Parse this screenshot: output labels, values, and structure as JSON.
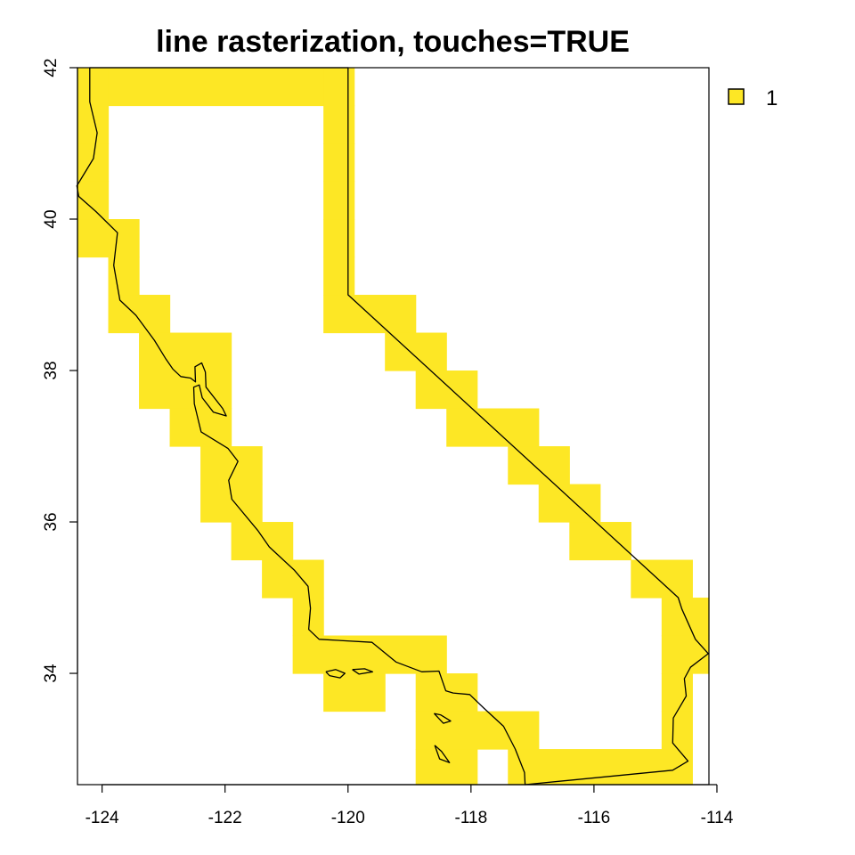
{
  "chart_data": {
    "type": "heatmap",
    "title": "line rasterization, touches=TRUE",
    "xlim": [
      -124.4,
      -114.13
    ],
    "ylim": [
      32.53,
      42.0
    ],
    "x_ticks": [
      -124,
      -122,
      -120,
      -118,
      -116,
      -114
    ],
    "y_ticks": [
      34,
      36,
      38,
      40,
      42
    ],
    "grid": false,
    "legend": {
      "placement": "top-right",
      "entries": [
        {
          "label": "1",
          "color": "#FDE725"
        }
      ]
    },
    "cell_size": [
      0.5,
      0.5
    ],
    "cells": [
      [
        -124.4,
        41.5,
        -123.9,
        42.0
      ],
      [
        -123.9,
        41.5,
        -120.4,
        42.0
      ],
      [
        -120.4,
        41.5,
        -119.9,
        42.0
      ],
      [
        -124.4,
        41.0,
        -123.9,
        41.5
      ],
      [
        -120.4,
        41.0,
        -119.9,
        41.5
      ],
      [
        -124.4,
        40.5,
        -123.9,
        41.0
      ],
      [
        -120.4,
        40.5,
        -119.9,
        41.0
      ],
      [
        -124.4,
        40.0,
        -123.9,
        40.5
      ],
      [
        -120.4,
        40.0,
        -119.9,
        40.5
      ],
      [
        -124.4,
        39.5,
        -123.4,
        40.0
      ],
      [
        -120.4,
        39.5,
        -119.9,
        40.0
      ],
      [
        -123.9,
        39.0,
        -123.4,
        39.5
      ],
      [
        -120.4,
        39.0,
        -119.9,
        39.5
      ],
      [
        -123.9,
        38.5,
        -122.9,
        39.0
      ],
      [
        -120.4,
        38.5,
        -118.9,
        39.0
      ],
      [
        -123.4,
        38.0,
        -121.9,
        38.5
      ],
      [
        -119.4,
        38.0,
        -118.4,
        38.5
      ],
      [
        -123.4,
        37.5,
        -121.9,
        38.0
      ],
      [
        -118.9,
        37.5,
        -117.9,
        38.0
      ],
      [
        -122.9,
        37.0,
        -121.9,
        37.5
      ],
      [
        -118.4,
        37.0,
        -116.9,
        37.5
      ],
      [
        -122.4,
        36.5,
        -121.4,
        37.0
      ],
      [
        -117.4,
        36.5,
        -116.4,
        37.0
      ],
      [
        -122.4,
        36.0,
        -121.4,
        36.5
      ],
      [
        -116.9,
        36.0,
        -115.9,
        36.5
      ],
      [
        -121.9,
        35.5,
        -120.9,
        36.0
      ],
      [
        -116.4,
        35.5,
        -115.4,
        36.0
      ],
      [
        -121.4,
        35.0,
        -120.4,
        35.5
      ],
      [
        -115.4,
        35.0,
        -114.4,
        35.5
      ],
      [
        -120.9,
        34.5,
        -120.4,
        35.0
      ],
      [
        -114.9,
        34.5,
        -114.13,
        35.0
      ],
      [
        -120.9,
        34.0,
        -118.4,
        34.5
      ],
      [
        -114.9,
        34.0,
        -114.13,
        34.5
      ],
      [
        -120.4,
        33.5,
        -119.4,
        34.0
      ],
      [
        -118.9,
        33.5,
        -117.9,
        34.0
      ],
      [
        -114.9,
        33.5,
        -114.4,
        34.0
      ],
      [
        -118.9,
        33.0,
        -116.9,
        33.5
      ],
      [
        -114.9,
        33.0,
        -114.4,
        33.5
      ],
      [
        -118.9,
        32.53,
        -117.9,
        33.0
      ],
      [
        -117.4,
        32.53,
        -114.4,
        33.0
      ]
    ],
    "boundary": [
      [
        -124.2,
        42.0
      ],
      [
        -120.0,
        42.0
      ],
      [
        -120.0,
        39.0
      ],
      [
        -114.63,
        35.0
      ],
      [
        -114.57,
        34.85
      ],
      [
        -114.35,
        34.45
      ],
      [
        -114.14,
        34.26
      ],
      [
        -114.43,
        34.08
      ],
      [
        -114.53,
        33.93
      ],
      [
        -114.5,
        33.7
      ],
      [
        -114.71,
        33.41
      ],
      [
        -114.72,
        33.08
      ],
      [
        -114.47,
        32.84
      ],
      [
        -114.72,
        32.72
      ],
      [
        -117.12,
        32.53
      ],
      [
        -117.13,
        32.69
      ],
      [
        -117.28,
        33.0
      ],
      [
        -117.47,
        33.3
      ],
      [
        -117.79,
        33.54
      ],
      [
        -118.02,
        33.72
      ],
      [
        -118.29,
        33.74
      ],
      [
        -118.41,
        33.77
      ],
      [
        -118.52,
        34.03
      ],
      [
        -118.8,
        34.02
      ],
      [
        -119.22,
        34.15
      ],
      [
        -119.61,
        34.41
      ],
      [
        -120.47,
        34.45
      ],
      [
        -120.64,
        34.58
      ],
      [
        -120.61,
        34.86
      ],
      [
        -120.65,
        35.15
      ],
      [
        -120.87,
        35.36
      ],
      [
        -121.28,
        35.67
      ],
      [
        -121.47,
        35.89
      ],
      [
        -121.89,
        36.3
      ],
      [
        -121.94,
        36.55
      ],
      [
        -121.79,
        36.8
      ],
      [
        -121.95,
        36.97
      ],
      [
        -122.39,
        37.19
      ],
      [
        -122.5,
        37.56
      ],
      [
        -122.51,
        37.78
      ],
      [
        -122.42,
        37.81
      ],
      [
        -122.37,
        37.64
      ],
      [
        -122.19,
        37.45
      ],
      [
        -121.98,
        37.4
      ],
      [
        -122.04,
        37.5
      ],
      [
        -122.31,
        37.78
      ],
      [
        -122.32,
        37.98
      ],
      [
        -122.38,
        38.1
      ],
      [
        -122.49,
        38.05
      ],
      [
        -122.48,
        37.85
      ],
      [
        -122.56,
        37.9
      ],
      [
        -122.72,
        37.92
      ],
      [
        -122.85,
        38.02
      ],
      [
        -122.96,
        38.15
      ],
      [
        -123.15,
        38.4
      ],
      [
        -123.45,
        38.73
      ],
      [
        -123.71,
        38.93
      ],
      [
        -123.81,
        39.39
      ],
      [
        -123.75,
        39.82
      ],
      [
        -124.1,
        40.1
      ],
      [
        -124.38,
        40.3
      ],
      [
        -124.41,
        40.44
      ],
      [
        -124.14,
        40.8
      ],
      [
        -124.08,
        41.14
      ],
      [
        -124.2,
        41.55
      ],
      [
        -124.2,
        42.0
      ]
    ],
    "islands": [
      [
        [
          -120.36,
          34.02
        ],
        [
          -120.2,
          34.05
        ],
        [
          -120.05,
          34.0
        ],
        [
          -120.13,
          33.94
        ],
        [
          -120.3,
          33.97
        ],
        [
          -120.36,
          34.02
        ]
      ],
      [
        [
          -119.93,
          34.05
        ],
        [
          -119.73,
          34.06
        ],
        [
          -119.6,
          34.02
        ],
        [
          -119.82,
          33.99
        ],
        [
          -119.93,
          34.05
        ]
      ],
      [
        [
          -118.6,
          33.47
        ],
        [
          -118.49,
          33.45
        ],
        [
          -118.33,
          33.37
        ],
        [
          -118.45,
          33.34
        ],
        [
          -118.6,
          33.47
        ]
      ],
      [
        [
          -118.59,
          33.05
        ],
        [
          -118.48,
          32.97
        ],
        [
          -118.35,
          32.82
        ],
        [
          -118.51,
          32.87
        ],
        [
          -118.59,
          33.05
        ]
      ]
    ]
  }
}
